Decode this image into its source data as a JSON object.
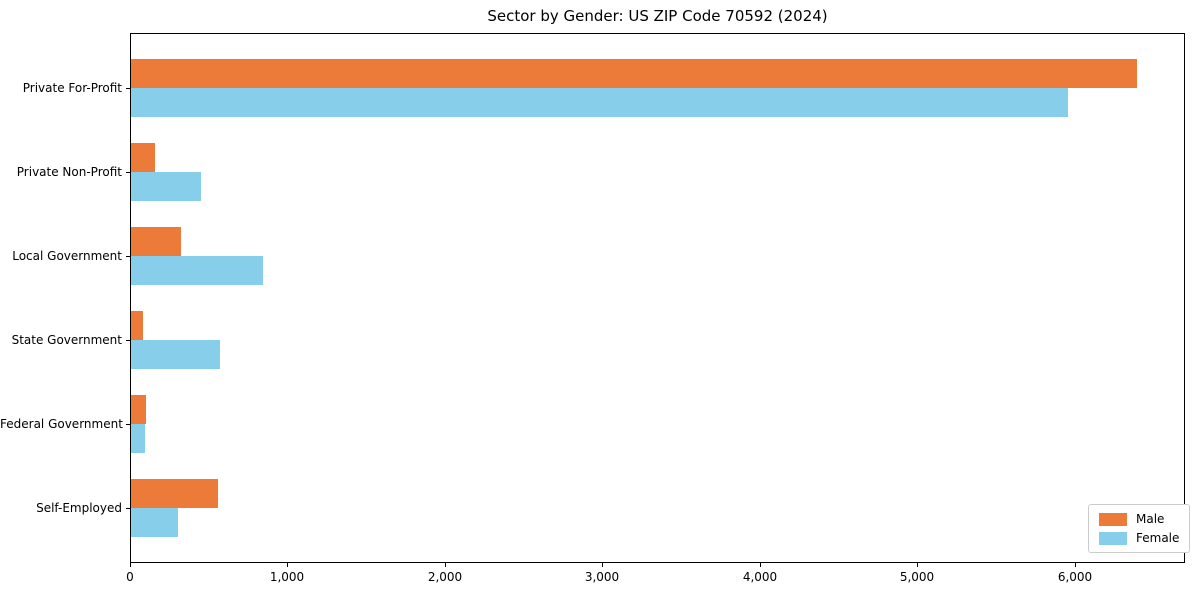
{
  "chart_data": {
    "type": "bar",
    "orientation": "horizontal",
    "title": "Sector by Gender: US ZIP Code 70592 (2024)",
    "categories": [
      "Private For-Profit",
      "Private Non-Profit",
      "Local Government",
      "State Government",
      "Federal Government",
      "Self-Employed"
    ],
    "series": [
      {
        "name": "Male",
        "color": "#ec7a39",
        "values": [
          6390,
          155,
          320,
          75,
          95,
          555
        ]
      },
      {
        "name": "Female",
        "color": "#87ceeb",
        "values": [
          5950,
          445,
          840,
          565,
          90,
          300
        ]
      }
    ],
    "xlabel": "",
    "ylabel": "",
    "xlim": [
      0,
      6700
    ],
    "xticks": [
      0,
      1000,
      2000,
      3000,
      4000,
      5000,
      6000
    ],
    "xtick_labels": [
      "0",
      "1,000",
      "2,000",
      "3,000",
      "4,000",
      "5,000",
      "6,000"
    ],
    "grid": false,
    "legend_position": "lower right"
  }
}
